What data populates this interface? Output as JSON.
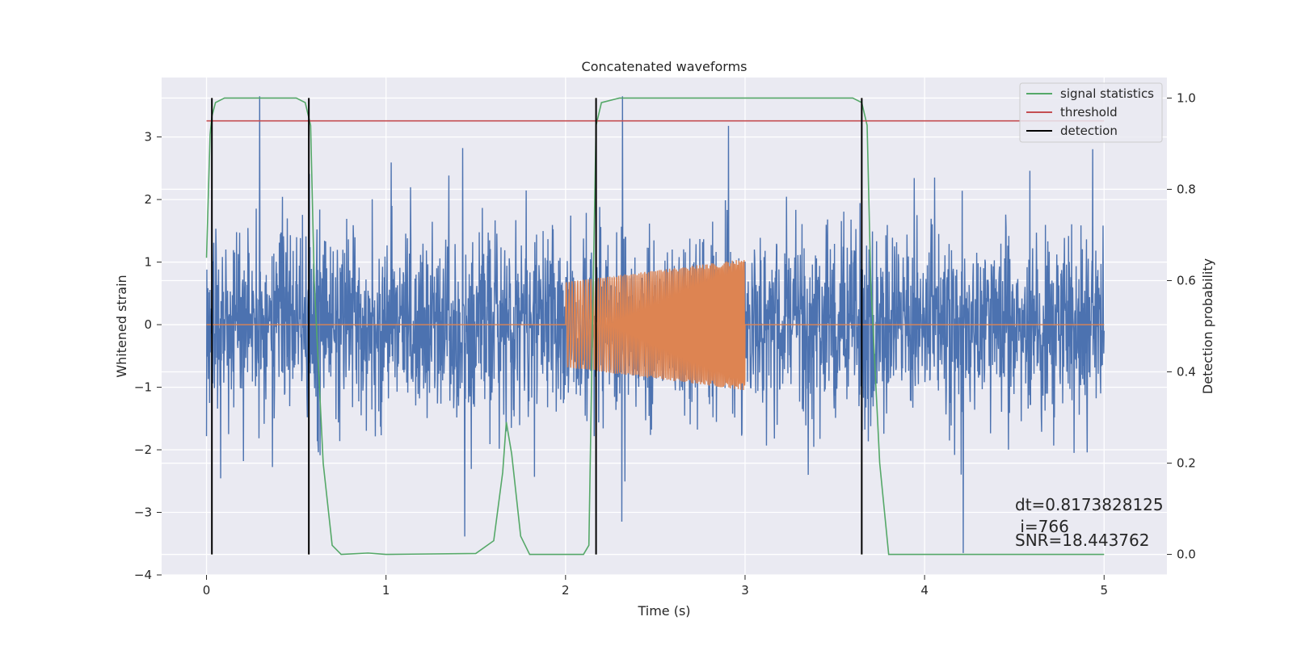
{
  "chart_data": {
    "type": "line",
    "title": "Concatenated waveforms",
    "xlabel": "Time (s)",
    "ylabel_left": "Whitened strain",
    "ylabel_right": "Detection probability",
    "xlim": [
      -0.25,
      5.35
    ],
    "ylim_left": [
      -4.0,
      3.95
    ],
    "ylim_right": [
      -0.045,
      1.045
    ],
    "xticks": [
      0,
      1,
      2,
      3,
      4,
      5
    ],
    "xtick_labels": [
      "0",
      "1",
      "2",
      "3",
      "4",
      "5"
    ],
    "yticks_left": [
      -4,
      -3,
      -2,
      -1,
      0,
      1,
      2,
      3
    ],
    "ytick_labels_left": [
      "−4",
      "−3",
      "−2",
      "−1",
      "0",
      "1",
      "2",
      "3"
    ],
    "yticks_right": [
      0.0,
      0.2,
      0.4,
      0.6,
      0.8,
      1.0
    ],
    "ytick_labels_right": [
      "0.0",
      "0.2",
      "0.4",
      "0.6",
      "0.8",
      "1.0"
    ],
    "grid": true,
    "legend_position": "top-right",
    "legend": [
      {
        "label": "signal statistics",
        "color": "#55a868"
      },
      {
        "label": "threshold",
        "color": "#c44e52"
      },
      {
        "label": "detection",
        "color": "#000000"
      }
    ],
    "series": [
      {
        "kind": "noise",
        "color": "#4c72b0",
        "x_range": [
          0,
          5
        ],
        "std": 0.75,
        "peak_min": -3.7,
        "peak_max": 3.65,
        "axis": "left"
      },
      {
        "kind": "template",
        "color": "#dd8452",
        "x_range": [
          0,
          5
        ],
        "chirp_range": [
          2.0,
          3.0
        ],
        "amp_start": 0.68,
        "amp_end": 1.05,
        "axis": "left"
      },
      {
        "name": "signal statistics",
        "color": "#55a868",
        "axis": "right",
        "x": [
          0.0,
          0.02,
          0.03,
          0.05,
          0.1,
          0.5,
          0.55,
          0.58,
          0.6,
          0.65,
          0.7,
          0.75,
          0.9,
          1.0,
          1.5,
          1.6,
          1.65,
          1.67,
          1.7,
          1.75,
          1.8,
          2.1,
          2.13,
          2.15,
          2.17,
          2.2,
          2.3,
          3.6,
          3.65,
          3.68,
          3.7,
          3.75,
          3.8,
          5.0
        ],
        "y": [
          0.65,
          0.92,
          0.96,
          0.99,
          1.0,
          1.0,
          0.99,
          0.94,
          0.6,
          0.2,
          0.02,
          0.0,
          0.003,
          0.0,
          0.002,
          0.03,
          0.18,
          0.29,
          0.22,
          0.04,
          0.0,
          0.0,
          0.02,
          0.5,
          0.94,
          0.99,
          1.0,
          1.0,
          0.99,
          0.94,
          0.6,
          0.2,
          0.0,
          0.0
        ]
      },
      {
        "name": "threshold",
        "color": "#c44e52",
        "axis": "right",
        "x": [
          0,
          5
        ],
        "y": [
          0.95,
          0.95
        ]
      },
      {
        "name": "detection",
        "color": "#000000",
        "axis": "right",
        "x": [
          0.03,
          0.57,
          2.17,
          3.65
        ],
        "y_range": [
          0.0,
          1.0
        ]
      }
    ],
    "annotation": {
      "line1": "dt=0.8173828125",
      "line2": " i=766",
      "line3": "SNR=18.443762"
    }
  }
}
